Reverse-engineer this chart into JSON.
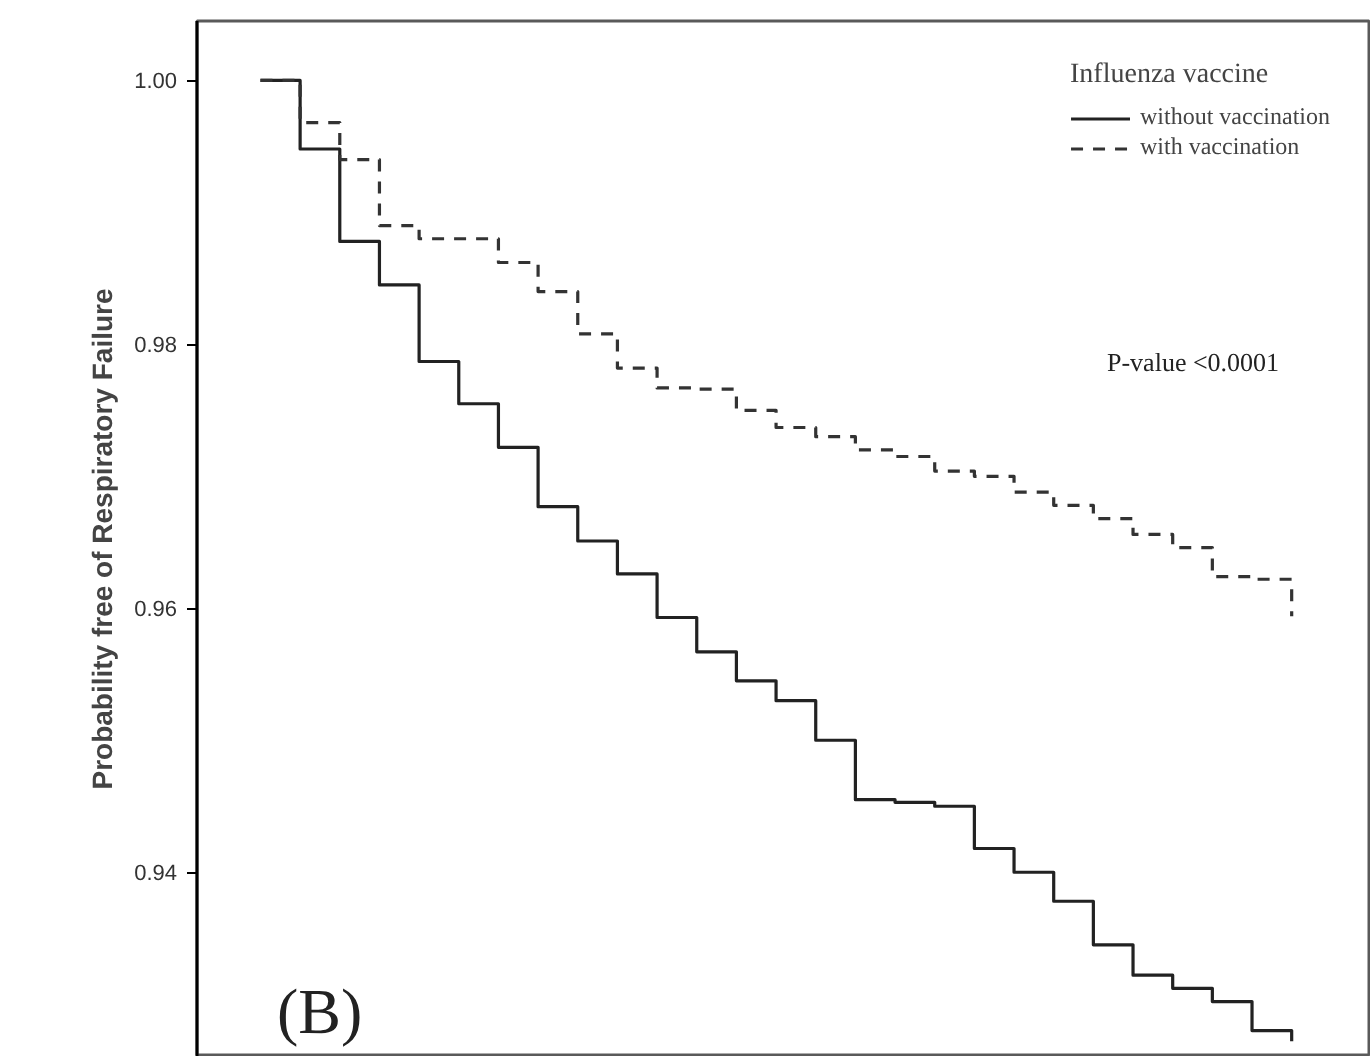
{
  "chart_data": {
    "type": "step",
    "ylabel": "Probability free of Respiratory Failure",
    "legend_title": "Influenza vaccine",
    "legend": "top right",
    "categories": [
      null,
      null,
      null,
      null,
      null,
      null,
      null,
      null,
      null,
      null,
      null,
      null,
      null,
      null,
      null,
      null,
      null,
      null,
      null,
      null,
      null,
      null,
      null,
      null,
      null,
      null,
      null
    ],
    "series": [
      {
        "name": "without vaccination",
        "color": "#222222",
        "line_style": "solid",
        "values": [
          1.0,
          0.9948,
          0.9878,
          0.9845,
          0.9787,
          0.9755,
          0.9722,
          0.9677,
          0.9651,
          0.9626,
          0.9593,
          0.9567,
          0.9545,
          0.953,
          0.95,
          0.9455,
          0.9453,
          0.945,
          0.9418,
          0.94,
          0.9378,
          0.9345,
          0.9322,
          0.9312,
          0.9302,
          0.928,
          0.9272
        ]
      },
      {
        "name": "with vaccination",
        "color": "#333333",
        "line_style": "dashed",
        "values": [
          1.0,
          0.9968,
          0.994,
          0.989,
          0.988,
          0.988,
          0.9862,
          0.984,
          0.9808,
          0.9782,
          0.9767,
          0.9766,
          0.975,
          0.9737,
          0.973,
          0.972,
          0.9715,
          0.9704,
          0.97,
          0.9688,
          0.9678,
          0.9668,
          0.9656,
          0.9646,
          0.9624,
          0.9622,
          0.9594
        ]
      }
    ],
    "ylim": [
      0.926,
      1.0045
    ],
    "yticks": [
      {
        "value": 0.94,
        "label": "0.94"
      },
      {
        "value": 0.96,
        "label": "0.96"
      },
      {
        "value": 0.98,
        "label": "0.98"
      },
      {
        "value": 1.0,
        "label": "1.00"
      }
    ],
    "tick_labels": "y",
    "grid": false,
    "annotations": [
      "P-value <0.0001",
      "(B)"
    ]
  }
}
